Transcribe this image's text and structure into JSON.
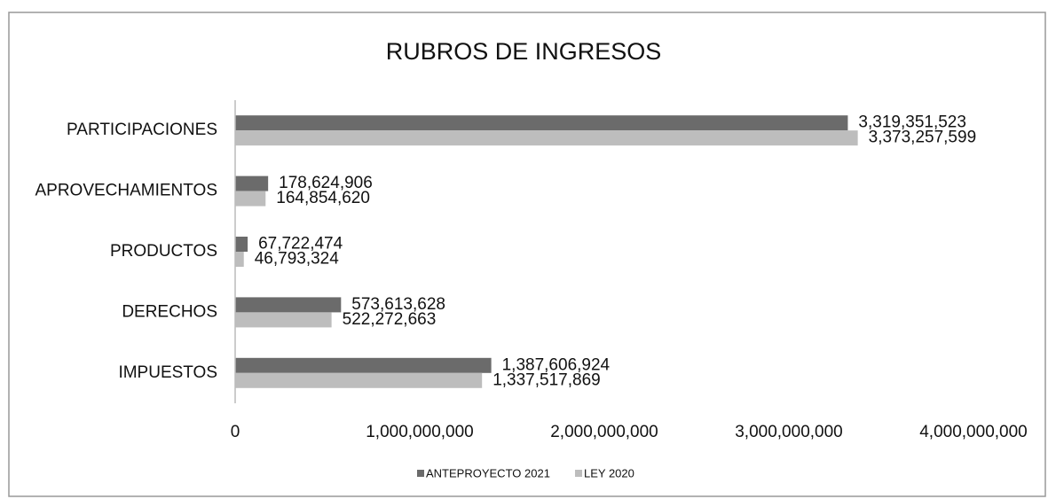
{
  "chart_data": {
    "type": "hbar",
    "title": "RUBROS DE INGRESOS",
    "categories": [
      "PARTICIPACIONES",
      "APROVECHAMIENTOS",
      "PRODUCTOS",
      "DERECHOS",
      "IMPUESTOS"
    ],
    "series": [
      {
        "name": "ANTEPROYECTO 2021",
        "color": "#6b6b6b",
        "values": [
          3319351523,
          178624906,
          67722474,
          573613628,
          1387606924
        ],
        "value_labels": [
          "3,319,351,523",
          "178,624,906",
          "67,722,474",
          "573,613,628",
          "1,387,606,924"
        ]
      },
      {
        "name": "LEY 2020",
        "color": "#bdbdbd",
        "values": [
          3373257599,
          164854620,
          46793324,
          522272663,
          1337517869
        ],
        "value_labels": [
          "3,373,257,599",
          "164,854,620",
          "46,793,324",
          "522,272,663",
          "1,337,517,869"
        ]
      }
    ],
    "xlim": [
      0,
      4000000000
    ],
    "xticks": [
      0,
      {
        "value": 1000000000,
        "label": "1,000,000,000"
      },
      {
        "value": 2000000000,
        "label": "2,000,000,000"
      },
      {
        "value": 3000000000,
        "label": "3,000,000,000"
      },
      {
        "value": 4000000000,
        "label": "4,000,000,000"
      }
    ],
    "grid": false,
    "legend": "bottom"
  }
}
